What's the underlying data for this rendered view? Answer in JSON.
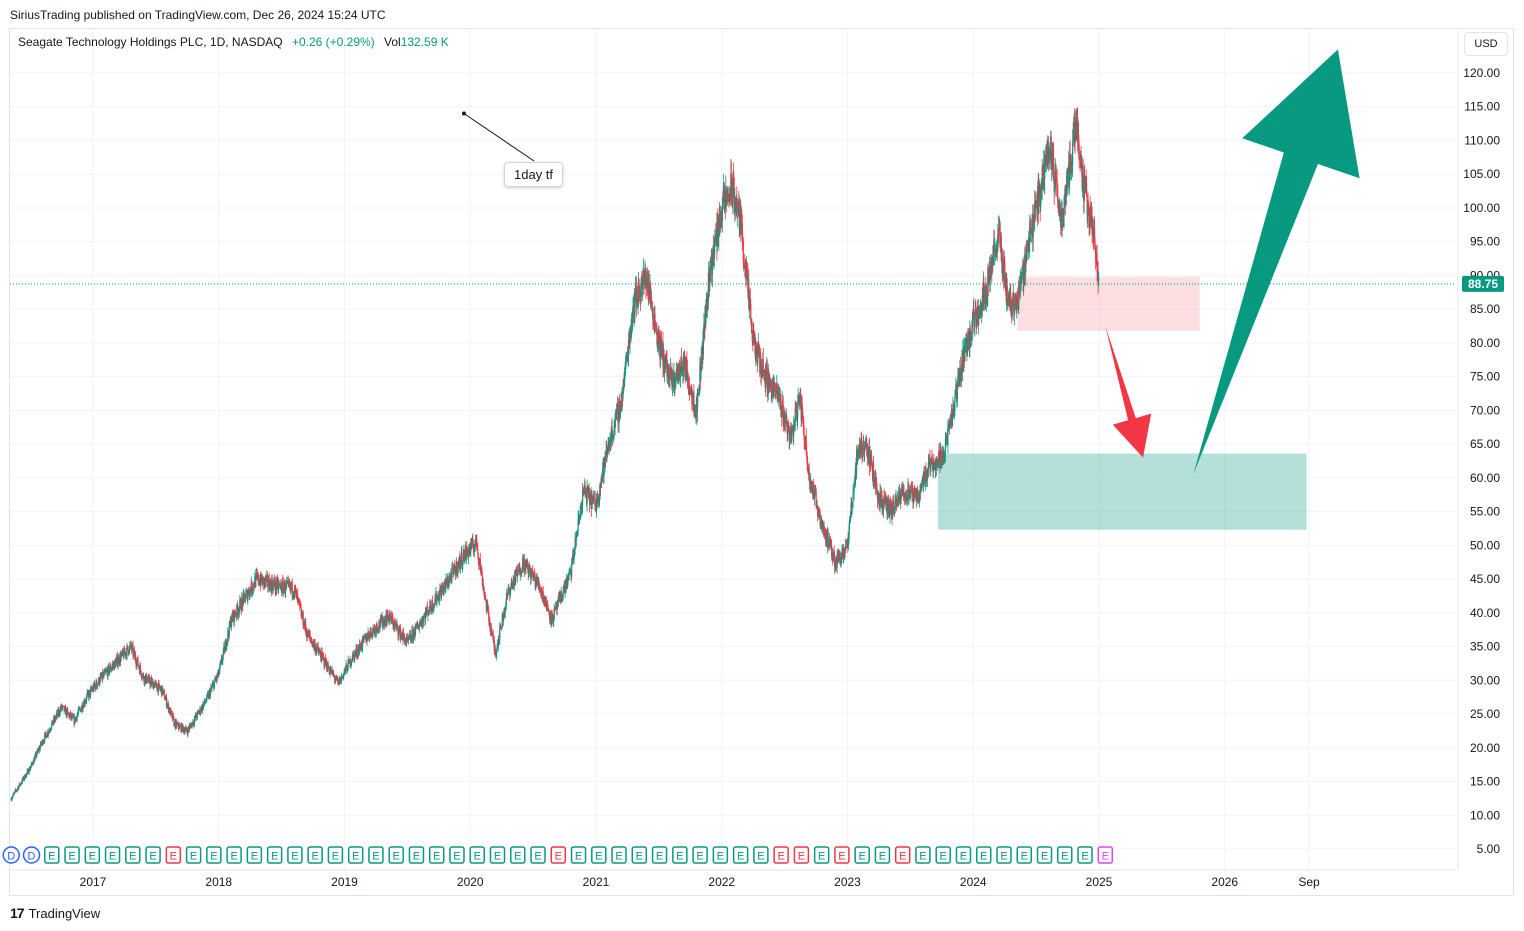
{
  "header": {
    "publish_line": "SiriusTrading published on TradingView.com, Dec 26, 2024 15:24 UTC"
  },
  "legend": {
    "symbol": "Seagate Technology Holdings PLC, 1D, NASDAQ",
    "change": "+0.26 (+0.29%)",
    "vol_label": "Vol",
    "vol_value": "132.59 K"
  },
  "currency_button": "USD",
  "annotation": {
    "text": "1day tf"
  },
  "footer": {
    "brand": "TradingView",
    "logo_glyph": "17"
  },
  "colors": {
    "up": "#089981",
    "down": "#f23645",
    "grid": "#f0f3fa",
    "last_price_bg": "#089981",
    "pink_zone": "#f23645",
    "teal_zone": "#089981",
    "up_arrow": "#089981",
    "down_arrow": "#f23645"
  },
  "chart_data": {
    "type": "candlestick",
    "symbol": "STX",
    "timeframe": "1D",
    "last_price": 88.75,
    "ylim": [
      0,
      125
    ],
    "y_ticks": [
      5,
      10,
      15,
      20,
      25,
      30,
      35,
      40,
      45,
      50,
      55,
      60,
      65,
      70,
      75,
      80,
      85,
      90,
      95,
      100,
      105,
      110,
      115,
      120
    ],
    "y_tick_labels": [
      "5.00",
      "10.00",
      "15.00",
      "20.00",
      "25.00",
      "30.00",
      "35.00",
      "40.00",
      "45.00",
      "50.00",
      "55.00",
      "60.00",
      "65.00",
      "70.00",
      "75.00",
      "80.00",
      "85.00",
      "90.00",
      "95.00",
      "100.00",
      "105.00",
      "110.00",
      "115.00",
      "120.00"
    ],
    "x_tick_labels": [
      "2017",
      "2018",
      "2019",
      "2020",
      "2021",
      "2022",
      "2023",
      "2024",
      "2025",
      "2026",
      "Sep"
    ],
    "x_tick_years": [
      2017.0,
      2018.0,
      2019.0,
      2020.0,
      2021.0,
      2022.0,
      2023.0,
      2024.0,
      2025.0,
      2026.0,
      2026.67
    ],
    "x_range": [
      2016.35,
      2027.5
    ],
    "price_path": [
      [
        2016.35,
        12.5
      ],
      [
        2016.5,
        17.0
      ],
      [
        2016.6,
        21.0
      ],
      [
        2016.75,
        26.0
      ],
      [
        2016.85,
        24.0
      ],
      [
        2016.95,
        27.5
      ],
      [
        2017.05,
        30.0
      ],
      [
        2017.2,
        33.0
      ],
      [
        2017.3,
        35.0
      ],
      [
        2017.4,
        30.5
      ],
      [
        2017.55,
        28.5
      ],
      [
        2017.65,
        23.5
      ],
      [
        2017.75,
        22.5
      ],
      [
        2017.9,
        27.0
      ],
      [
        2018.0,
        31.0
      ],
      [
        2018.1,
        39.0
      ],
      [
        2018.2,
        42.0
      ],
      [
        2018.3,
        45.0
      ],
      [
        2018.45,
        44.0
      ],
      [
        2018.6,
        43.5
      ],
      [
        2018.7,
        37.0
      ],
      [
        2018.8,
        34.0
      ],
      [
        2018.95,
        29.5
      ],
      [
        2019.05,
        33.0
      ],
      [
        2019.2,
        37.0
      ],
      [
        2019.35,
        39.5
      ],
      [
        2019.5,
        35.5
      ],
      [
        2019.65,
        40.0
      ],
      [
        2019.8,
        44.0
      ],
      [
        2019.95,
        48.5
      ],
      [
        2020.05,
        50.5
      ],
      [
        2020.12,
        42.0
      ],
      [
        2020.2,
        34.0
      ],
      [
        2020.3,
        43.0
      ],
      [
        2020.42,
        47.5
      ],
      [
        2020.55,
        44.0
      ],
      [
        2020.65,
        39.0
      ],
      [
        2020.8,
        46.0
      ],
      [
        2020.9,
        58.0
      ],
      [
        2021.0,
        56.0
      ],
      [
        2021.1,
        65.0
      ],
      [
        2021.2,
        71.0
      ],
      [
        2021.3,
        86.0
      ],
      [
        2021.4,
        90.0
      ],
      [
        2021.5,
        80.0
      ],
      [
        2021.6,
        74.0
      ],
      [
        2021.7,
        77.0
      ],
      [
        2021.8,
        70.0
      ],
      [
        2021.9,
        90.0
      ],
      [
        2022.0,
        100.0
      ],
      [
        2022.08,
        103.0
      ],
      [
        2022.15,
        98.0
      ],
      [
        2022.25,
        80.0
      ],
      [
        2022.35,
        75.0
      ],
      [
        2022.45,
        72.0
      ],
      [
        2022.55,
        66.0
      ],
      [
        2022.62,
        72.0
      ],
      [
        2022.7,
        60.0
      ],
      [
        2022.8,
        53.0
      ],
      [
        2022.9,
        47.5
      ],
      [
        2023.0,
        50.0
      ],
      [
        2023.08,
        64.0
      ],
      [
        2023.15,
        65.0
      ],
      [
        2023.25,
        57.0
      ],
      [
        2023.35,
        55.0
      ],
      [
        2023.45,
        58.0
      ],
      [
        2023.55,
        57.0
      ],
      [
        2023.65,
        62.0
      ],
      [
        2023.75,
        63.0
      ],
      [
        2023.82,
        68.0
      ],
      [
        2023.92,
        78.0
      ],
      [
        2024.0,
        83.0
      ],
      [
        2024.1,
        88.0
      ],
      [
        2024.2,
        96.0
      ],
      [
        2024.28,
        86.0
      ],
      [
        2024.35,
        86.0
      ],
      [
        2024.45,
        96.0
      ],
      [
        2024.55,
        104.0
      ],
      [
        2024.6,
        110.0
      ],
      [
        2024.7,
        98.0
      ],
      [
        2024.78,
        108.0
      ],
      [
        2024.82,
        113.0
      ],
      [
        2024.88,
        103.0
      ],
      [
        2024.95,
        97.0
      ],
      [
        2025.0,
        88.75
      ]
    ],
    "zones": [
      {
        "name": "pink-zone",
        "x0": 2024.35,
        "x1": 2025.8,
        "y0": 81.8,
        "y1": 89.8
      },
      {
        "name": "teal-zone",
        "x0": 2023.72,
        "x1": 2026.65,
        "y0": 52.3,
        "y1": 63.6
      }
    ],
    "arrows": [
      {
        "name": "down-arrow",
        "from": [
          2025.05,
          82.5
        ],
        "to": [
          2025.35,
          63.0
        ]
      },
      {
        "name": "up-arrow",
        "from": [
          2025.75,
          60.5
        ],
        "to": [
          2026.9,
          123.5
        ]
      }
    ],
    "annotation_anchor": [
      2019.95,
      114.0
    ],
    "event_markers": [
      "D",
      "D",
      "E",
      "E",
      "E",
      "E",
      "E",
      "E",
      "E",
      "E",
      "E",
      "E",
      "E",
      "E",
      "E",
      "E",
      "E",
      "E",
      "E",
      "E",
      "E",
      "E",
      "E",
      "E",
      "E",
      "E",
      "E",
      "E",
      "E",
      "E",
      "E",
      "E",
      "E",
      "E",
      "E",
      "E",
      "E",
      "E",
      "E",
      "E",
      "E",
      "E",
      "E",
      "E",
      "E",
      "E",
      "E",
      "E",
      "E",
      "E",
      "E",
      "E",
      "E",
      "E",
      "E"
    ],
    "event_marker_colors": [
      "#2962ff",
      "#2962ff",
      "#089981",
      "#089981",
      "#089981",
      "#089981",
      "#089981",
      "#089981",
      "#f23645",
      "#089981",
      "#089981",
      "#089981",
      "#089981",
      "#089981",
      "#089981",
      "#089981",
      "#089981",
      "#089981",
      "#089981",
      "#089981",
      "#089981",
      "#089981",
      "#089981",
      "#089981",
      "#089981",
      "#089981",
      "#089981",
      "#f23645",
      "#089981",
      "#089981",
      "#089981",
      "#089981",
      "#089981",
      "#089981",
      "#089981",
      "#089981",
      "#089981",
      "#089981",
      "#f23645",
      "#f23645",
      "#089981",
      "#f23645",
      "#089981",
      "#089981",
      "#f23645",
      "#089981",
      "#089981",
      "#089981",
      "#089981",
      "#089981",
      "#089981",
      "#089981",
      "#089981",
      "#089981",
      "#e040fb"
    ]
  }
}
